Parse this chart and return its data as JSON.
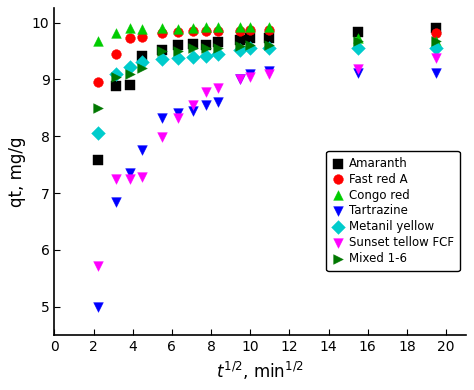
{
  "xlabel_latex": "$t^{1/2}$, min$^{1/2}$",
  "ylabel": "qt, mg/g",
  "xlim": [
    0,
    21
  ],
  "ylim": [
    4.5,
    10.25
  ],
  "xticks": [
    0,
    2,
    4,
    6,
    8,
    10,
    12,
    14,
    16,
    18,
    20
  ],
  "yticks": [
    5,
    6,
    7,
    8,
    9,
    10
  ],
  "series": [
    {
      "label": "Amaranth",
      "color": "#000000",
      "marker": "s",
      "x": [
        2.24,
        3.16,
        3.87,
        4.47,
        5.48,
        6.32,
        7.07,
        7.75,
        8.37,
        9.49,
        10.0,
        10.95,
        15.49,
        19.49
      ],
      "y": [
        7.58,
        8.88,
        8.9,
        9.42,
        9.52,
        9.6,
        9.62,
        9.6,
        9.65,
        9.7,
        9.72,
        9.72,
        9.83,
        9.9
      ]
    },
    {
      "label": "Fast red A",
      "color": "#ff0000",
      "marker": "o",
      "x": [
        2.24,
        3.16,
        3.87,
        4.47,
        5.48,
        6.32,
        7.07,
        7.75,
        8.37,
        9.49,
        10.0,
        10.95,
        19.49
      ],
      "y": [
        8.95,
        9.45,
        9.72,
        9.75,
        9.82,
        9.84,
        9.85,
        9.85,
        9.86,
        9.86,
        9.87,
        9.87,
        9.82
      ]
    },
    {
      "label": "Congo red",
      "color": "#00cc00",
      "marker": "^",
      "x": [
        2.24,
        3.16,
        3.87,
        4.47,
        5.48,
        6.32,
        7.07,
        7.75,
        8.37,
        9.49,
        10.0,
        10.95,
        15.49,
        19.49
      ],
      "y": [
        9.68,
        9.82,
        9.9,
        9.89,
        9.9,
        9.88,
        9.9,
        9.92,
        9.92,
        9.92,
        9.92,
        9.92,
        9.72,
        9.68
      ]
    },
    {
      "label": "Tartrazine",
      "color": "#0000ff",
      "marker": "v",
      "x": [
        2.24,
        3.16,
        3.87,
        4.47,
        5.48,
        6.32,
        7.07,
        7.75,
        8.37,
        9.49,
        10.0,
        10.95,
        15.49,
        19.49
      ],
      "y": [
        5.0,
        6.85,
        7.35,
        7.75,
        8.32,
        8.4,
        8.45,
        8.55,
        8.6,
        9.0,
        9.1,
        9.15,
        9.12,
        9.12
      ]
    },
    {
      "label": "Metanil yellow",
      "color": "#00cccc",
      "marker": "D",
      "x": [
        2.24,
        3.16,
        3.87,
        4.47,
        5.48,
        6.32,
        7.07,
        7.75,
        8.37,
        9.49,
        10.0,
        10.95,
        15.49,
        19.49
      ],
      "y": [
        8.05,
        9.1,
        9.22,
        9.3,
        9.35,
        9.38,
        9.4,
        9.42,
        9.45,
        9.52,
        9.55,
        9.55,
        9.55,
        9.55
      ]
    },
    {
      "label": "Sunset tellow FCF",
      "color": "#ff00ff",
      "marker": "v",
      "x": [
        2.24,
        3.16,
        3.87,
        4.47,
        5.48,
        6.32,
        7.07,
        7.75,
        8.37,
        9.49,
        10.0,
        10.95,
        15.49,
        19.49
      ],
      "y": [
        5.72,
        7.25,
        7.25,
        7.28,
        7.98,
        8.32,
        8.55,
        8.78,
        8.85,
        9.0,
        9.05,
        9.1,
        9.18,
        9.38
      ]
    },
    {
      "label": "Mixed 1-6",
      "color": "#007700",
      "marker": ">",
      "x": [
        2.24,
        3.16,
        3.87,
        4.47,
        5.48,
        6.32,
        7.07,
        7.75,
        8.37,
        9.49,
        10.0,
        10.95,
        15.49,
        19.49
      ],
      "y": [
        8.5,
        9.05,
        9.1,
        9.2,
        9.5,
        9.5,
        9.55,
        9.55,
        9.55,
        9.58,
        9.6,
        9.6,
        9.68,
        9.68
      ]
    }
  ],
  "background_color": "#ffffff",
  "legend_fontsize": 8.5,
  "axis_fontsize": 12,
  "tick_fontsize": 10,
  "marker_size": 7
}
